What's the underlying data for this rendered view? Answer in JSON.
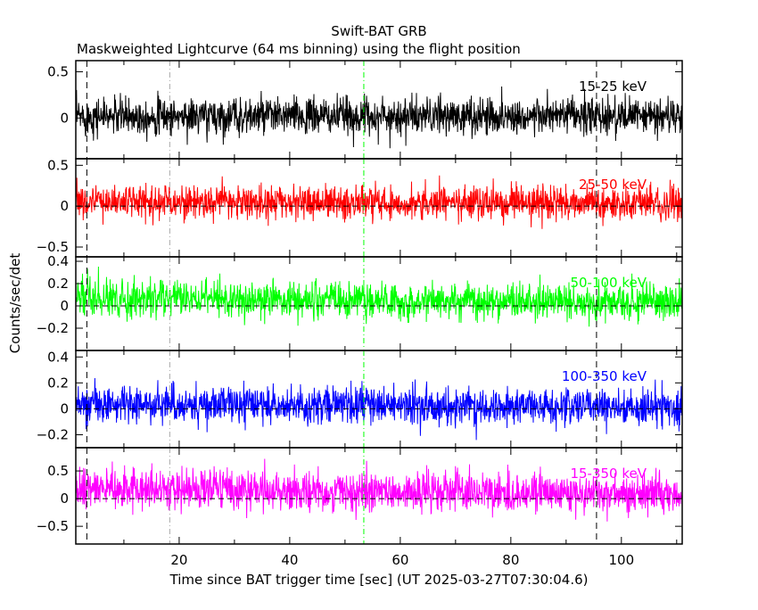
{
  "chart_data": {
    "type": "line",
    "title": "Swift-BAT GRB",
    "subtitle": "Maskweighted Lightcurve (64 ms binning) using the flight position",
    "xlabel": "Time since BAT trigger time [sec] (UT 2025-03-27T07:30:04.6)",
    "ylabel": "Counts/sec/det",
    "xlim": [
      1.3,
      111
    ],
    "xticks": [
      20,
      40,
      60,
      80,
      100
    ],
    "bin_seconds": 0.064,
    "grid": false,
    "vertical_markers": [
      {
        "x": 3.3,
        "style": "dashed",
        "color": "#000000"
      },
      {
        "x": 95.5,
        "style": "dashed",
        "color": "#000000"
      },
      {
        "x": 18.3,
        "style": "dash-dot",
        "color": "#aaaaaa"
      },
      {
        "x": 53.4,
        "style": "dash-dot",
        "color": "#00ff00"
      }
    ],
    "panels": [
      {
        "name": "15-25 keV",
        "color": "#000000",
        "ylim": [
          -0.44,
          0.62
        ],
        "yticks": [
          {
            "v": 0.5,
            "t": "0.5"
          },
          {
            "v": 0,
            "t": "0"
          }
        ],
        "zero_line": false,
        "mean_start": 0.02,
        "mean_end": 0.02,
        "sigma": 0.1
      },
      {
        "name": "25-50 keV",
        "color": "#ff0000",
        "ylim": [
          -0.62,
          0.58
        ],
        "yticks": [
          {
            "v": 0.5,
            "t": "0.5"
          },
          {
            "v": 0,
            "t": "0"
          },
          {
            "v": -0.5,
            "t": "−0.5"
          }
        ],
        "zero_line": true,
        "mean_start": 0.06,
        "mean_end": 0.03,
        "sigma": 0.1
      },
      {
        "name": "50-100 keV",
        "color": "#00ff00",
        "ylim": [
          -0.4,
          0.44
        ],
        "yticks": [
          {
            "v": 0.4,
            "t": "0.4"
          },
          {
            "v": 0.2,
            "t": "0.2"
          },
          {
            "v": 0,
            "t": "0"
          },
          {
            "v": -0.2,
            "t": "−0.2"
          }
        ],
        "zero_line": true,
        "mean_start": 0.07,
        "mean_end": 0.03,
        "sigma": 0.08
      },
      {
        "name": "100-350 keV",
        "color": "#0000ff",
        "ylim": [
          -0.3,
          0.45
        ],
        "yticks": [
          {
            "v": 0.4,
            "t": "0.4"
          },
          {
            "v": 0.2,
            "t": "0.2"
          },
          {
            "v": 0,
            "t": "0"
          },
          {
            "v": -0.2,
            "t": "−0.2"
          }
        ],
        "zero_line": true,
        "mean_start": 0.04,
        "mean_end": 0.01,
        "sigma": 0.07
      },
      {
        "name": "15-350 keV",
        "color": "#ff00ff",
        "ylim": [
          -0.82,
          0.92
        ],
        "yticks": [
          {
            "v": 0.5,
            "t": "0.5"
          },
          {
            "v": 0,
            "t": "0"
          },
          {
            "v": -0.5,
            "t": "−0.5"
          }
        ],
        "zero_line": true,
        "mean_start": 0.18,
        "mean_end": 0.06,
        "sigma": 0.18
      }
    ]
  }
}
